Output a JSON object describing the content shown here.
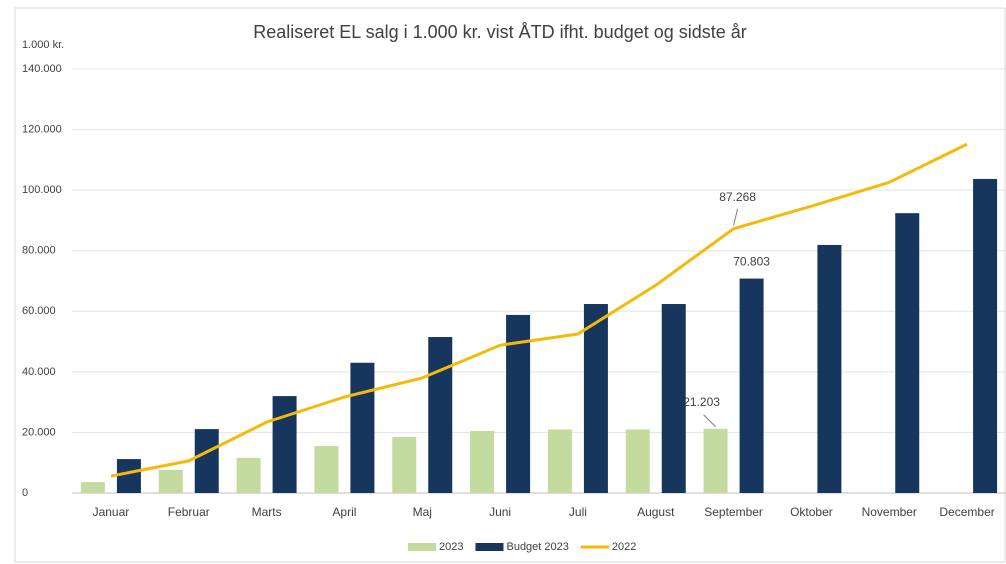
{
  "chart_data": {
    "type": "bar_line",
    "title": "Realiseret EL salg i 1.000 kr. vist ÅTD ifht. budget og sidste år",
    "y_unit_label": "1.000 kr.",
    "categories": [
      "Januar",
      "Februar",
      "Marts",
      "April",
      "Maj",
      "Juni",
      "Juli",
      "August",
      "September",
      "Oktober",
      "November",
      "December"
    ],
    "series": [
      {
        "name": "2023",
        "type": "bar",
        "color": "#c4dba0",
        "values": [
          3600,
          7600,
          11600,
          15500,
          18500,
          20500,
          21000,
          21000,
          21203,
          null,
          null,
          null
        ],
        "value_labels": [
          null,
          null,
          null,
          null,
          null,
          null,
          null,
          null,
          "21.203",
          null,
          null,
          null
        ]
      },
      {
        "name": "Budget 2023",
        "type": "bar",
        "color": "#17365d",
        "values": [
          11200,
          21100,
          32000,
          43000,
          51500,
          58800,
          62400,
          62400,
          70803,
          81900,
          92400,
          103700
        ],
        "value_labels": [
          null,
          null,
          null,
          null,
          null,
          null,
          null,
          null,
          "70.803",
          null,
          null,
          null
        ]
      },
      {
        "name": "2022",
        "type": "line",
        "color": "#f5b90a",
        "values": [
          5600,
          10600,
          23400,
          31700,
          38000,
          48800,
          52500,
          68600,
          87268,
          94700,
          102600,
          115200
        ],
        "value_labels": [
          null,
          null,
          null,
          null,
          null,
          null,
          null,
          null,
          "87.268",
          null,
          null,
          null
        ]
      }
    ],
    "ylim": [
      0,
      140000
    ],
    "yticks": [
      0,
      {
        "value": 20000,
        "label": "20.000"
      },
      {
        "value": 40000,
        "label": "40.000"
      },
      {
        "value": 60000,
        "label": "60.000"
      },
      {
        "value": 80000,
        "label": "80.000"
      },
      {
        "value": 100000,
        "label": "100.000"
      },
      {
        "value": 120000,
        "label": "120.000"
      },
      {
        "value": 140000,
        "label": "140.000"
      }
    ],
    "grid": true,
    "legend": "bottom"
  }
}
